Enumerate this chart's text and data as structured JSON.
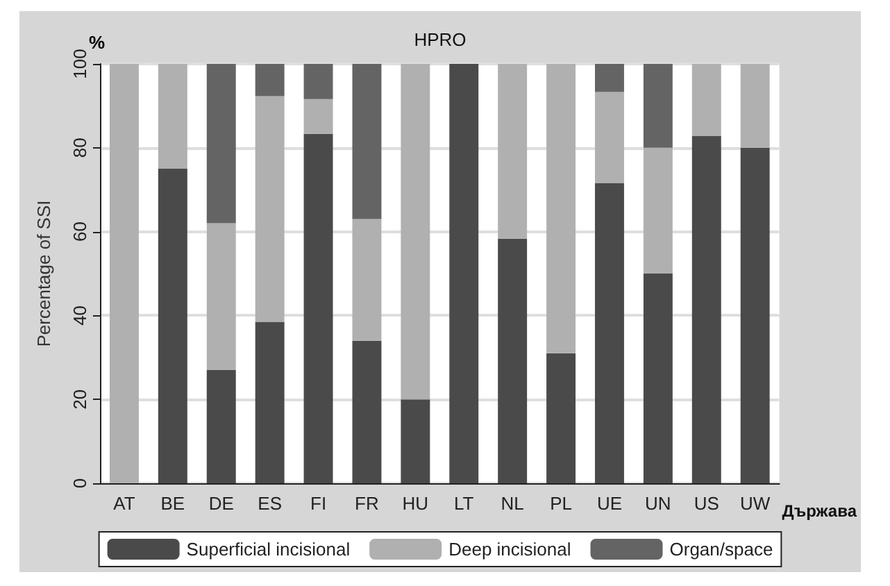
{
  "chart_data": {
    "type": "bar",
    "title": "HPRO",
    "xlabel": "Държава",
    "ylabel": "Percentage of SSI",
    "annotations": [
      "%"
    ],
    "categories": [
      "AT",
      "BE",
      "DE",
      "ES",
      "FI",
      "FR",
      "HU",
      "LT",
      "NL",
      "PL",
      "UE",
      "UN",
      "US",
      "UW"
    ],
    "series": [
      {
        "name": "Superficial incisional",
        "color": "#4a4a4a",
        "values": [
          0,
          75,
          27,
          38.5,
          83.3,
          34,
          20,
          100,
          58.3,
          31,
          71.6,
          50,
          82.8,
          80
        ]
      },
      {
        "name": "Deep incisional",
        "color": "#b0b0b0",
        "values": [
          100,
          25,
          35,
          53.8,
          8.3,
          29,
          80,
          0,
          41.7,
          69,
          21.7,
          30,
          17.2,
          20
        ]
      },
      {
        "name": "Organ/space",
        "color": "#646464",
        "values": [
          0,
          0,
          38,
          7.7,
          8.4,
          37,
          0,
          0,
          0,
          0,
          6.7,
          20,
          0,
          0
        ]
      }
    ],
    "stacked": true,
    "ylim": [
      0,
      100
    ],
    "yticks": [
      0,
      20,
      40,
      60,
      80,
      100
    ],
    "grid": "y",
    "legend": "bottom"
  }
}
